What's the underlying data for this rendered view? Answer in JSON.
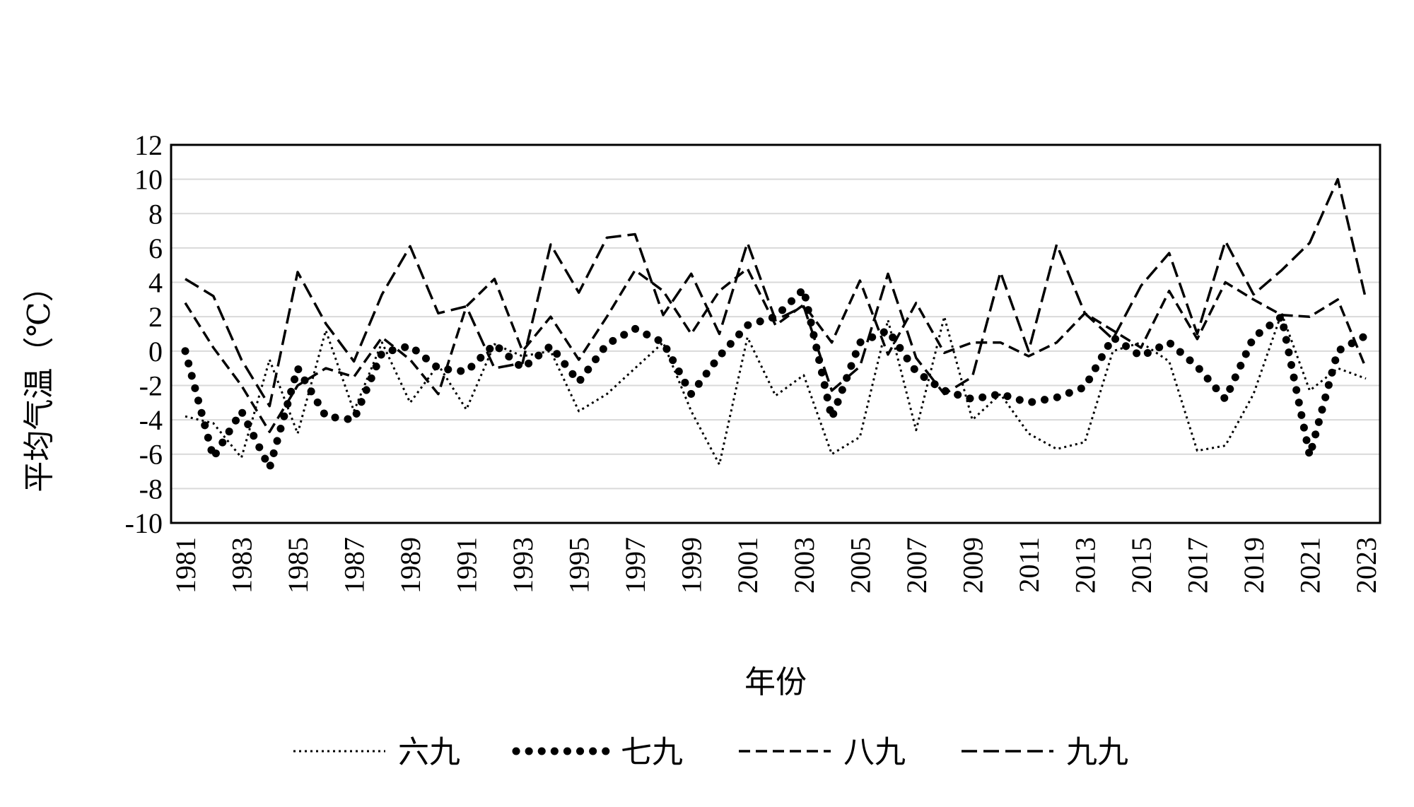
{
  "chart_data": {
    "type": "line",
    "xlabel": "年份",
    "ylabel": "平均气温（℃）",
    "ylim": [
      -10,
      12
    ],
    "y_ticks": [
      "12",
      "10",
      "8",
      "6",
      "4",
      "2",
      "0",
      "-2",
      "-4",
      "-6",
      "-8",
      "-10"
    ],
    "y_tick_values": [
      12,
      10,
      8,
      6,
      4,
      2,
      0,
      -2,
      -4,
      -6,
      -8,
      -10
    ],
    "x": [
      1981,
      1982,
      1983,
      1984,
      1985,
      1986,
      1987,
      1988,
      1989,
      1990,
      1991,
      1992,
      1993,
      1994,
      1995,
      1996,
      1997,
      1998,
      1999,
      2000,
      2001,
      2002,
      2003,
      2004,
      2005,
      2006,
      2007,
      2008,
      2009,
      2010,
      2011,
      2012,
      2013,
      2014,
      2015,
      2016,
      2017,
      2018,
      2019,
      2020,
      2021,
      2022,
      2023
    ],
    "x_tick_labels": [
      "1981",
      "1983",
      "1985",
      "1987",
      "1989",
      "1991",
      "1993",
      "1995",
      "1997",
      "1999",
      "2001",
      "2003",
      "2005",
      "2007",
      "2009",
      "2011",
      "2013",
      "2015",
      "2017",
      "2019",
      "2021",
      "2023"
    ],
    "x_tick_values": [
      1981,
      1983,
      1985,
      1987,
      1989,
      1991,
      1993,
      1995,
      1997,
      1999,
      2001,
      2003,
      2005,
      2007,
      2009,
      2011,
      2013,
      2015,
      2017,
      2019,
      2021,
      2023
    ],
    "grid": true,
    "legend_position": "bottom",
    "series": [
      {
        "name": "六九",
        "style": "fine-dotted",
        "values": [
          -3.8,
          -4.2,
          -6.2,
          -0.5,
          -4.8,
          1.2,
          -3.5,
          0.5,
          -3.0,
          -0.8,
          -3.4,
          0.4,
          -0.3,
          0.0,
          -3.5,
          -2.5,
          -1.0,
          0.5,
          -3.5,
          -6.6,
          0.8,
          -2.6,
          -1.4,
          -6.0,
          -5.0,
          1.8,
          -4.6,
          2.0,
          -4.0,
          -2.5,
          -4.8,
          -5.7,
          -5.3,
          0.0,
          0.5,
          -0.6,
          -5.8,
          -5.5,
          -2.5,
          2.2,
          -2.3,
          -1.0,
          -1.6
        ]
      },
      {
        "name": "七九",
        "style": "heavy-dotted",
        "values": [
          0.0,
          -6.2,
          -3.5,
          -6.8,
          -1.0,
          -3.8,
          -4.0,
          -0.1,
          0.3,
          -1.0,
          -1.2,
          0.4,
          -1.0,
          0.3,
          -1.8,
          0.4,
          1.3,
          0.5,
          -2.5,
          -0.3,
          1.5,
          2.0,
          3.6,
          -3.9,
          0.5,
          1.2,
          -1.2,
          -2.3,
          -2.8,
          -2.5,
          -3.0,
          -2.7,
          -2.1,
          0.8,
          -0.3,
          0.5,
          -0.9,
          -2.8,
          0.8,
          2.0,
          -6.1,
          0.0,
          0.9
        ]
      },
      {
        "name": "八九",
        "style": "dashed",
        "values": [
          2.8,
          0.2,
          -2.0,
          -4.7,
          -2.0,
          -1.0,
          -1.5,
          0.8,
          -0.5,
          -2.5,
          2.6,
          4.2,
          0.0,
          2.0,
          -0.5,
          2.0,
          4.7,
          3.5,
          1.0,
          3.5,
          4.8,
          1.5,
          2.7,
          0.5,
          4.1,
          -0.2,
          2.8,
          -0.1,
          0.5,
          0.5,
          -0.3,
          0.5,
          2.2,
          1.2,
          0.2,
          3.5,
          0.7,
          4.0,
          3.0,
          2.1,
          2.0,
          3.0,
          -1.0
        ]
      },
      {
        "name": "九九",
        "style": "long-dashed",
        "values": [
          4.2,
          3.2,
          -0.5,
          -3.2,
          4.6,
          1.6,
          -0.6,
          3.3,
          6.1,
          2.2,
          2.6,
          -1.0,
          -0.7,
          6.2,
          3.4,
          6.6,
          6.8,
          2.1,
          4.5,
          1.0,
          6.3,
          1.8,
          2.6,
          -2.3,
          -0.9,
          4.5,
          -0.4,
          -2.5,
          -1.5,
          4.6,
          0.0,
          6.2,
          2.2,
          0.7,
          3.8,
          5.7,
          1.0,
          6.4,
          3.3,
          4.7,
          6.3,
          10.0,
          3.0
        ]
      }
    ]
  }
}
